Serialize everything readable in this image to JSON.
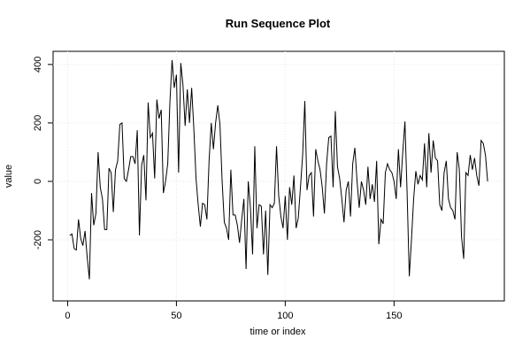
{
  "chart_data": {
    "type": "line",
    "title": "Run Sequence Plot",
    "x_label": "time or index",
    "y_label": "value",
    "x": [
      1,
      2,
      3,
      4,
      5,
      6,
      7,
      8,
      9,
      10,
      11,
      12,
      13,
      14,
      15,
      16,
      17,
      18,
      19,
      20,
      21,
      22,
      23,
      24,
      25,
      26,
      27,
      28,
      29,
      30,
      31,
      32,
      33,
      34,
      35,
      36,
      37,
      38,
      39,
      40,
      41,
      42,
      43,
      44,
      45,
      46,
      47,
      48,
      49,
      50,
      51,
      52,
      53,
      54,
      55,
      56,
      57,
      58,
      59,
      60,
      61,
      62,
      63,
      64,
      65,
      66,
      67,
      68,
      69,
      70,
      71,
      72,
      73,
      74,
      75,
      76,
      77,
      78,
      79,
      80,
      81,
      82,
      83,
      84,
      85,
      86,
      87,
      88,
      89,
      90,
      91,
      92,
      93,
      94,
      95,
      96,
      97,
      98,
      99,
      100,
      101,
      102,
      103,
      104,
      105,
      106,
      107,
      108,
      109,
      110,
      111,
      112,
      113,
      114,
      115,
      116,
      117,
      118,
      119,
      120,
      121,
      122,
      123,
      124,
      125,
      126,
      127,
      128,
      129,
      130,
      131,
      132,
      133,
      134,
      135,
      136,
      137,
      138,
      139,
      140,
      141,
      142,
      143,
      144,
      145,
      146,
      147,
      148,
      149,
      150,
      151,
      152,
      153,
      154,
      155,
      156,
      157,
      158,
      159,
      160,
      161,
      162,
      163,
      164,
      165,
      166,
      167,
      168,
      169,
      170,
      171,
      172,
      173,
      174,
      175,
      176,
      177,
      178,
      179,
      180,
      181,
      182,
      183,
      184,
      185,
      186,
      187,
      188,
      189,
      190,
      191,
      192,
      193
    ],
    "series": [
      {
        "name": "value",
        "color": "#000000",
        "values": [
          -185,
          -180,
          -230,
          -235,
          -130,
          -195,
          -220,
          -170,
          -260,
          -335,
          -40,
          -150,
          -110,
          100,
          -20,
          -60,
          -165,
          -165,
          45,
          30,
          -105,
          40,
          70,
          195,
          200,
          10,
          0,
          40,
          85,
          85,
          60,
          175,
          -185,
          55,
          90,
          -65,
          270,
          150,
          165,
          10,
          280,
          215,
          245,
          -40,
          0,
          60,
          270,
          415,
          320,
          365,
          30,
          405,
          330,
          190,
          315,
          200,
          320,
          180,
          10,
          -80,
          -155,
          -75,
          -80,
          -130,
          70,
          200,
          110,
          200,
          260,
          195,
          0,
          -140,
          -160,
          -200,
          40,
          -115,
          -115,
          -150,
          -210,
          -130,
          -60,
          -300,
          0,
          -90,
          -250,
          120,
          -160,
          -80,
          -85,
          -250,
          -100,
          -320,
          -80,
          -90,
          -75,
          120,
          -50,
          -120,
          -160,
          -50,
          -200,
          -20,
          -80,
          20,
          -160,
          -125,
          -20,
          90,
          275,
          -30,
          20,
          30,
          -120,
          110,
          70,
          40,
          -20,
          -110,
          60,
          150,
          155,
          -20,
          240,
          50,
          10,
          -60,
          -140,
          -30,
          0,
          -120,
          60,
          115,
          0,
          -90,
          0,
          -30,
          -80,
          50,
          -60,
          -10,
          -70,
          70,
          -215,
          -130,
          -145,
          30,
          60,
          40,
          30,
          0,
          -60,
          110,
          -20,
          100,
          205,
          -40,
          -325,
          -200,
          -60,
          35,
          -10,
          20,
          5,
          130,
          -20,
          165,
          30,
          140,
          80,
          70,
          -80,
          -100,
          30,
          70,
          -60,
          -90,
          -100,
          -130,
          100,
          40,
          -190,
          -265,
          30,
          20,
          90,
          40,
          80,
          20,
          -15,
          140,
          130,
          90,
          0
        ]
      }
    ],
    "xlim": [
      -6.68,
      200.68
    ],
    "xticks": [
      0,
      50,
      100,
      150
    ],
    "ylim": [
      -409,
      445
    ],
    "yticks": [
      -200,
      0,
      200,
      400
    ],
    "grid": true
  }
}
